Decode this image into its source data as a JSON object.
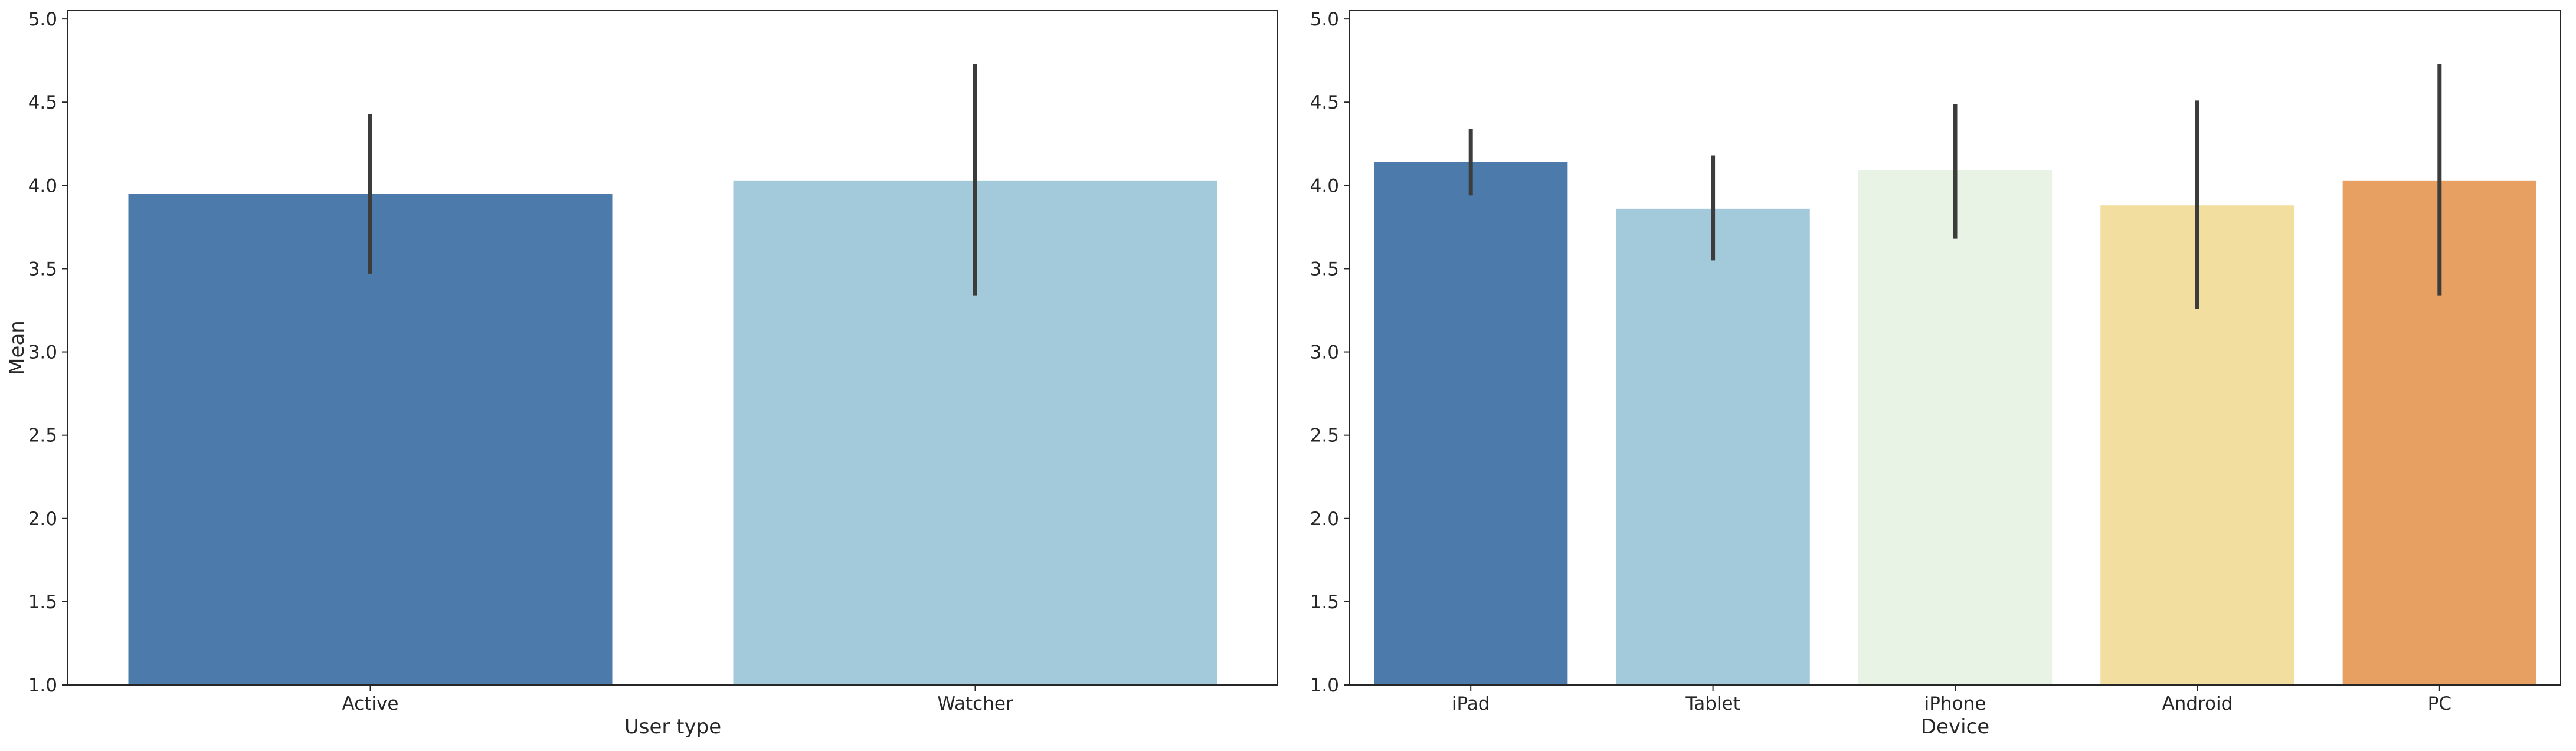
{
  "chart_data": [
    {
      "type": "bar",
      "categories": [
        "Active",
        "Watcher"
      ],
      "values": [
        3.95,
        4.03
      ],
      "error_low": [
        3.47,
        3.34
      ],
      "error_high": [
        4.43,
        4.73
      ],
      "colors": [
        "#4b7aab",
        "#a3cadb"
      ],
      "error_bar_color": "#3c3c3c",
      "xlabel": "User type",
      "ylabel": "Mean",
      "ylim": [
        1.0,
        5.05
      ],
      "yticks": [
        1.0,
        1.5,
        2.0,
        2.5,
        3.0,
        3.5,
        4.0,
        4.5,
        5.0
      ],
      "grid": false
    },
    {
      "type": "bar",
      "categories": [
        "iPad",
        "Tablet",
        "iPhone",
        "Android",
        "PC"
      ],
      "values": [
        4.14,
        3.86,
        4.09,
        3.88,
        4.03
      ],
      "error_low": [
        3.94,
        3.55,
        3.68,
        3.26,
        3.34
      ],
      "error_high": [
        4.34,
        4.18,
        4.49,
        4.51,
        4.73
      ],
      "colors": [
        "#4b7aab",
        "#a3cadb",
        "#e8f3e6",
        "#f2dfa0",
        "#e89f62"
      ],
      "error_bar_color": "#3c3c3c",
      "xlabel": "Device",
      "ylabel": "",
      "ylim": [
        1.0,
        5.05
      ],
      "yticks": [
        1.0,
        1.5,
        2.0,
        2.5,
        3.0,
        3.5,
        4.0,
        4.5,
        5.0
      ],
      "grid": false
    }
  ]
}
